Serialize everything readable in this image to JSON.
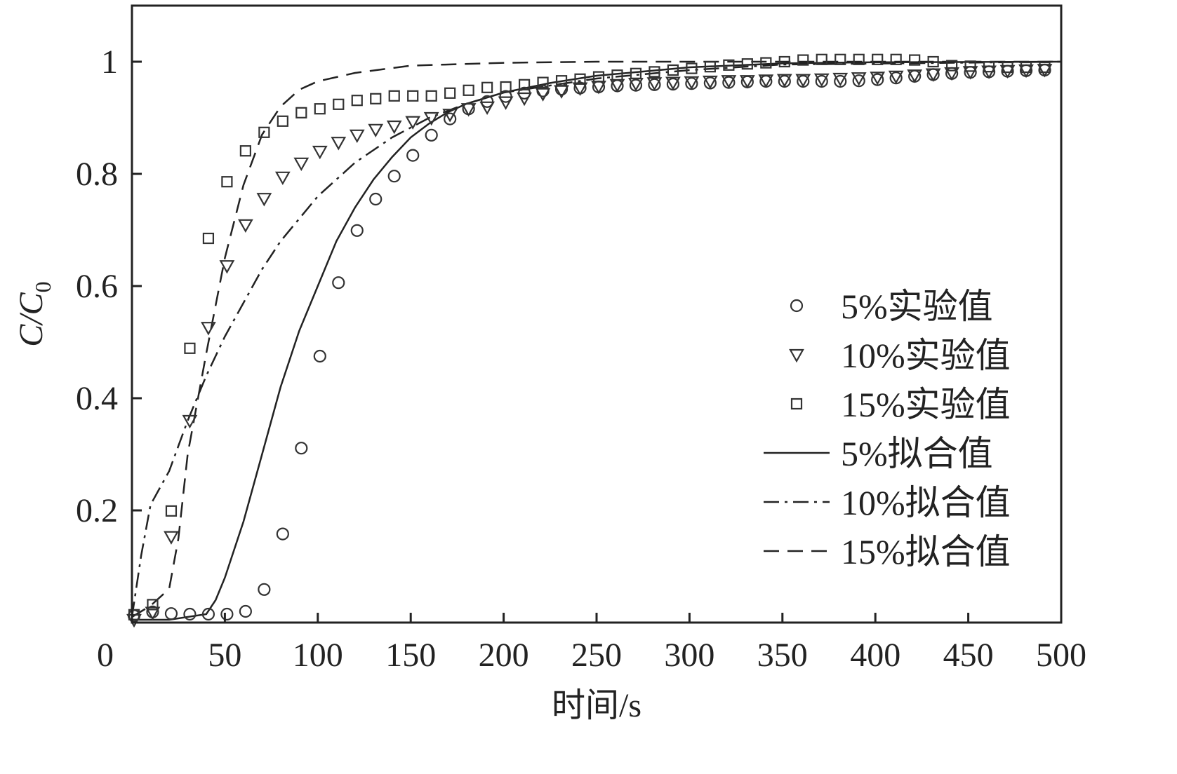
{
  "chart_data": {
    "type": "scatter",
    "title": "",
    "xlabel": "时间/s",
    "ylabel": "C/C0",
    "ylabel_main": "C/C",
    "ylabel_sub": "0",
    "xlim": [
      0,
      500
    ],
    "ylim": [
      0,
      1.1
    ],
    "grid": false,
    "legend_position": "right-center",
    "xticks": [
      0,
      50,
      100,
      150,
      200,
      250,
      300,
      350,
      400,
      450,
      500
    ],
    "xtick_labels": [
      "0",
      "50",
      "100",
      "150",
      "200",
      "250",
      "300",
      "350",
      "400",
      "450",
      "500"
    ],
    "yticks": [
      0.2,
      0.4,
      0.6,
      0.8,
      1
    ],
    "ytick_labels": [
      "0.2",
      "0.4",
      "0.6",
      "0.8",
      "1"
    ],
    "x": [
      0,
      10,
      20,
      30,
      40,
      50,
      60,
      70,
      80,
      90,
      100,
      110,
      120,
      130,
      140,
      150,
      160,
      170,
      180,
      190,
      200,
      210,
      220,
      230,
      240,
      250,
      260,
      270,
      280,
      290,
      300,
      310,
      320,
      330,
      340,
      350,
      360,
      370,
      380,
      390,
      400,
      410,
      420,
      430,
      440,
      450,
      460,
      470,
      480,
      490
    ],
    "series": [
      {
        "name": "5%实验值",
        "marker": "circle",
        "values": [
          0.012,
          0.019,
          0.016,
          0.015,
          0.015,
          0.015,
          0.02,
          0.059,
          0.158,
          0.311,
          0.475,
          0.606,
          0.699,
          0.755,
          0.796,
          0.833,
          0.869,
          0.898,
          0.916,
          0.929,
          0.938,
          0.944,
          0.948,
          0.951,
          0.953,
          0.955,
          0.957,
          0.958,
          0.959,
          0.96,
          0.961,
          0.962,
          0.963,
          0.964,
          0.965,
          0.965,
          0.965,
          0.965,
          0.965,
          0.966,
          0.968,
          0.971,
          0.974,
          0.977,
          0.979,
          0.981,
          0.982,
          0.983,
          0.984,
          0.985
        ]
      },
      {
        "name": "10%实验值",
        "marker": "triangle-down",
        "values": [
          0.005,
          0.018,
          0.153,
          0.36,
          0.526,
          0.636,
          0.709,
          0.756,
          0.794,
          0.819,
          0.84,
          0.856,
          0.869,
          0.879,
          0.885,
          0.893,
          0.9,
          0.906,
          0.916,
          0.919,
          0.928,
          0.935,
          0.943,
          0.948,
          0.953,
          0.956,
          0.959,
          0.961,
          0.962,
          0.963,
          0.964,
          0.965,
          0.966,
          0.966,
          0.967,
          0.968,
          0.968,
          0.969,
          0.97,
          0.971,
          0.972,
          0.974,
          0.976,
          0.978,
          0.98,
          0.982,
          0.983,
          0.984,
          0.985,
          0.986
        ]
      },
      {
        "name": "15%实验值",
        "marker": "square",
        "values": [
          0.014,
          0.032,
          0.199,
          0.489,
          0.685,
          0.786,
          0.841,
          0.874,
          0.894,
          0.909,
          0.916,
          0.924,
          0.931,
          0.934,
          0.939,
          0.939,
          0.939,
          0.944,
          0.949,
          0.954,
          0.955,
          0.959,
          0.963,
          0.966,
          0.969,
          0.973,
          0.976,
          0.979,
          0.982,
          0.985,
          0.988,
          0.991,
          0.994,
          0.996,
          0.998,
          1.0,
          1.003,
          1.004,
          1.004,
          1.004,
          1.004,
          1.004,
          1.003,
          1.0,
          0.993,
          0.992,
          0.991,
          0.99,
          0.99,
          0.99
        ]
      },
      {
        "name": "5%拟合值",
        "line": "solid",
        "x": [
          0,
          20,
          40,
          45,
          50,
          60,
          70,
          80,
          90,
          100,
          110,
          120,
          130,
          140,
          150,
          160,
          170,
          180,
          200,
          225,
          250,
          300,
          350,
          400,
          500
        ],
        "values": [
          0.005,
          0.005,
          0.015,
          0.04,
          0.08,
          0.18,
          0.3,
          0.42,
          0.52,
          0.6,
          0.68,
          0.74,
          0.79,
          0.83,
          0.865,
          0.89,
          0.91,
          0.925,
          0.945,
          0.962,
          0.975,
          0.99,
          0.997,
          0.999,
          1.0
        ]
      },
      {
        "name": "10%拟合值",
        "line": "dashdot",
        "x": [
          0,
          5,
          10,
          20,
          30,
          40,
          50,
          60,
          70,
          80,
          90,
          100,
          120,
          140,
          160,
          180,
          200,
          250,
          300,
          350,
          500
        ],
        "values": [
          0.01,
          0.12,
          0.21,
          0.27,
          0.36,
          0.44,
          0.51,
          0.57,
          0.63,
          0.68,
          0.72,
          0.76,
          0.82,
          0.865,
          0.9,
          0.925,
          0.945,
          0.97,
          0.985,
          0.995,
          1.0
        ]
      },
      {
        "name": "15%拟合值",
        "line": "dashed",
        "x": [
          0,
          10,
          20,
          25,
          30,
          40,
          50,
          60,
          70,
          80,
          90,
          100,
          120,
          150,
          200,
          250,
          500
        ],
        "values": [
          0.01,
          0.03,
          0.06,
          0.15,
          0.3,
          0.48,
          0.65,
          0.78,
          0.87,
          0.92,
          0.95,
          0.965,
          0.98,
          0.993,
          0.998,
          1.0,
          1.0
        ]
      }
    ]
  }
}
